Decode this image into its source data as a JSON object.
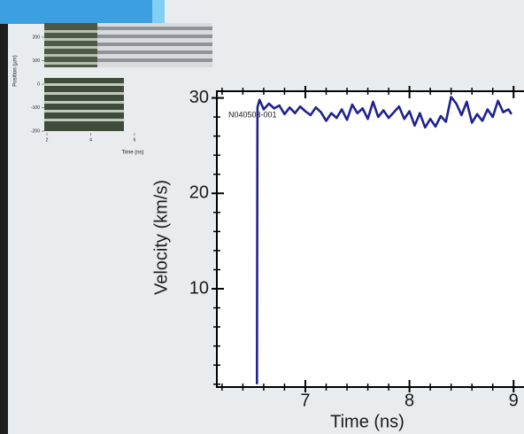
{
  "chart_data": [
    {
      "type": "line",
      "annotation": "N040503-001",
      "x_label": "Time (ns)",
      "y_label": "Velocity (km/s)",
      "xlim": [
        6.15,
        9.1
      ],
      "ylim": [
        -0.3,
        30.7
      ],
      "xticks": [
        7,
        8,
        9
      ],
      "yticks": [
        10,
        20,
        30
      ],
      "xminorticks": [
        6.2,
        6.4,
        6.6,
        6.8,
        7.2,
        7.4,
        7.6,
        7.8,
        8.2,
        8.4,
        8.6,
        8.8
      ],
      "yminorticks": [
        0,
        2,
        4,
        6,
        8,
        12,
        14,
        16,
        18,
        22,
        24,
        26,
        28
      ],
      "series": [
        {
          "color": "#1f2290",
          "x": [
            6.535,
            6.54,
            6.56,
            6.6,
            6.65,
            6.7,
            6.75,
            6.8,
            6.85,
            6.9,
            6.95,
            7.0,
            7.05,
            7.1,
            7.15,
            7.2,
            7.25,
            7.3,
            7.35,
            7.4,
            7.45,
            7.5,
            7.55,
            7.6,
            7.65,
            7.7,
            7.75,
            7.8,
            7.85,
            7.9,
            7.95,
            8.0,
            8.05,
            8.1,
            8.15,
            8.2,
            8.25,
            8.3,
            8.35,
            8.4,
            8.45,
            8.5,
            8.55,
            8.6,
            8.65,
            8.7,
            8.75,
            8.8,
            8.85,
            8.9,
            8.95,
            8.98
          ],
          "values": [
            0,
            29.0,
            29.8,
            28.8,
            29.4,
            28.9,
            29.2,
            28.3,
            29.0,
            28.4,
            29.1,
            28.6,
            28.2,
            29.0,
            28.5,
            27.6,
            28.4,
            27.9,
            28.8,
            27.7,
            29.3,
            28.4,
            28.9,
            27.8,
            29.6,
            28.0,
            28.7,
            27.9,
            28.5,
            29.1,
            27.8,
            28.6,
            27.1,
            28.4,
            26.9,
            27.8,
            27.0,
            28.1,
            27.5,
            30.1,
            29.4,
            28.2,
            29.6,
            27.4,
            28.3,
            27.6,
            28.8,
            28.0,
            29.7,
            28.5,
            28.8,
            28.3
          ]
        }
      ]
    },
    {
      "type": "image",
      "x_label": "Time (ns)",
      "y_label": "Position (µm)",
      "xlim": [
        2,
        6
      ],
      "ylim": [
        -200,
        200
      ],
      "xticks": [
        2,
        4,
        6
      ],
      "yticks": [
        -200,
        -100,
        0,
        100,
        200
      ]
    }
  ]
}
